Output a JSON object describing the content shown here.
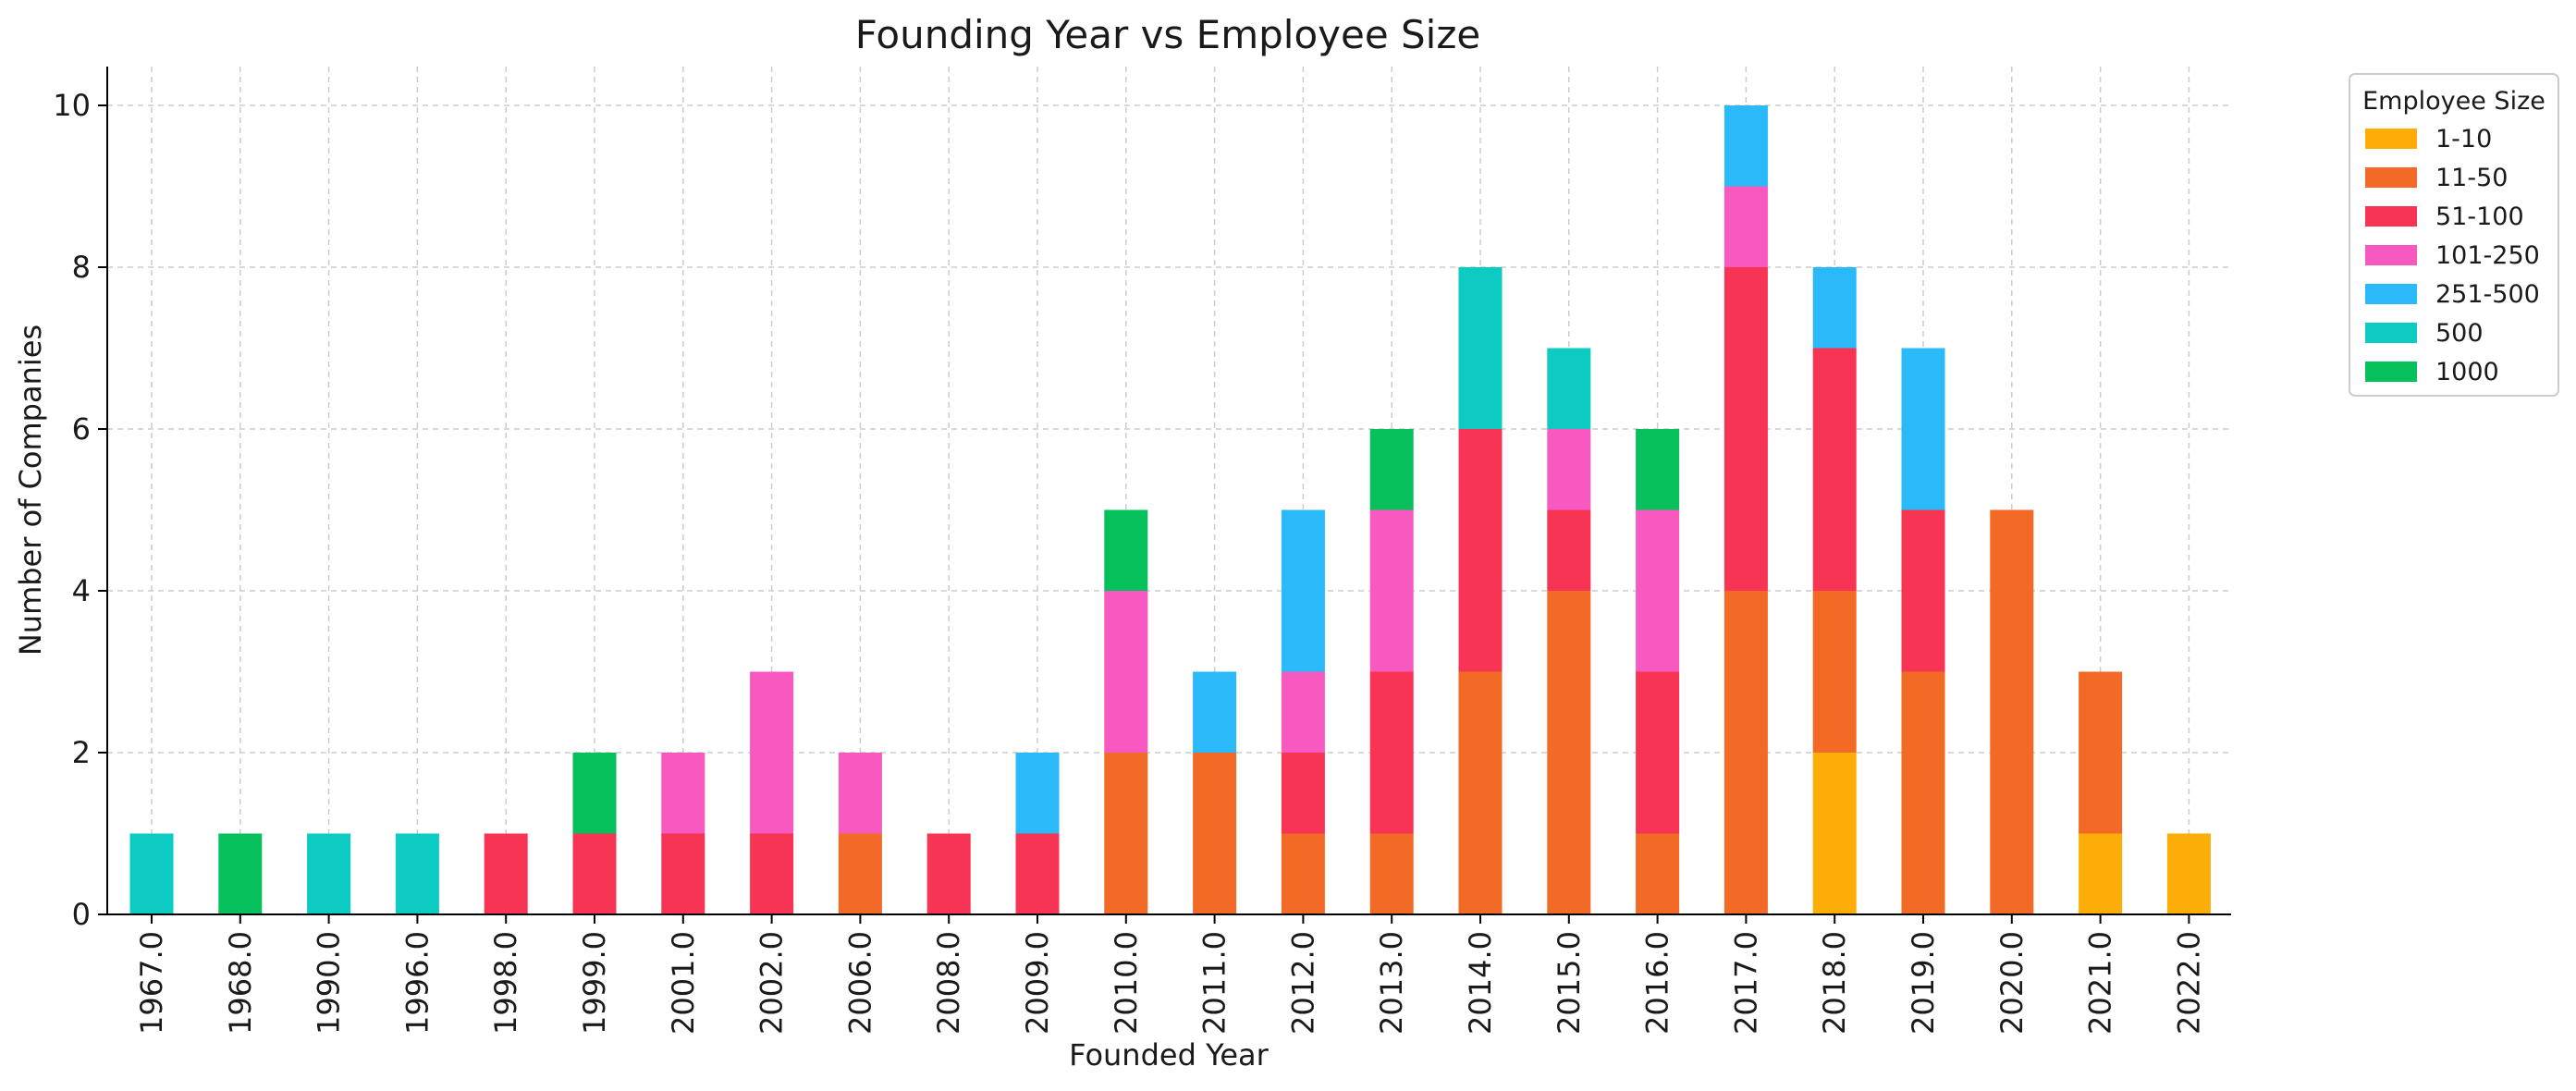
{
  "chart_data": {
    "type": "bar",
    "stacked": true,
    "title": "Founding Year vs Employee Size",
    "xlabel": "Founded Year",
    "ylabel": "Number of Companies",
    "ylim": [
      0,
      10.5
    ],
    "yticks": [
      0,
      2,
      4,
      6,
      8,
      10
    ],
    "grid": true,
    "legend_title": "Employee Size",
    "legend_position": "outside-right",
    "categories": [
      "1967.0",
      "1968.0",
      "1990.0",
      "1996.0",
      "1998.0",
      "1999.0",
      "2001.0",
      "2002.0",
      "2006.0",
      "2008.0",
      "2009.0",
      "2010.0",
      "2011.0",
      "2012.0",
      "2013.0",
      "2014.0",
      "2015.0",
      "2016.0",
      "2017.0",
      "2018.0",
      "2019.0",
      "2020.0",
      "2021.0",
      "2022.0"
    ],
    "series": [
      {
        "name": "1-10",
        "color": "#FDAD07",
        "values": [
          0,
          0,
          0,
          0,
          0,
          0,
          0,
          0,
          0,
          0,
          0,
          0,
          0,
          0,
          0,
          0,
          0,
          0,
          0,
          2,
          0,
          0,
          1,
          1
        ]
      },
      {
        "name": "11-50",
        "color": "#F26A25",
        "values": [
          0,
          0,
          0,
          0,
          0,
          0,
          0,
          0,
          1,
          0,
          0,
          2,
          2,
          1,
          1,
          3,
          4,
          1,
          4,
          2,
          3,
          5,
          2,
          0
        ]
      },
      {
        "name": "51-100",
        "color": "#F73454",
        "values": [
          0,
          0,
          0,
          0,
          1,
          1,
          1,
          1,
          0,
          1,
          1,
          0,
          0,
          1,
          2,
          3,
          1,
          2,
          4,
          3,
          2,
          0,
          0,
          0
        ]
      },
      {
        "name": "101-250",
        "color": "#F759C1",
        "values": [
          0,
          0,
          0,
          0,
          0,
          0,
          1,
          2,
          1,
          0,
          0,
          2,
          0,
          1,
          2,
          0,
          1,
          2,
          1,
          0,
          0,
          0,
          0,
          0
        ]
      },
      {
        "name": "251-500",
        "color": "#2ABAF9",
        "values": [
          0,
          0,
          0,
          0,
          0,
          0,
          0,
          0,
          0,
          0,
          1,
          0,
          1,
          2,
          0,
          0,
          0,
          0,
          1,
          1,
          2,
          0,
          0,
          0
        ]
      },
      {
        "name": "500",
        "color": "#0BCBC3",
        "values": [
          1,
          0,
          1,
          1,
          0,
          0,
          0,
          0,
          0,
          0,
          0,
          0,
          0,
          0,
          0,
          2,
          1,
          0,
          0,
          0,
          0,
          0,
          0,
          0
        ]
      },
      {
        "name": "1000",
        "color": "#06C05B",
        "values": [
          0,
          1,
          0,
          0,
          0,
          1,
          0,
          0,
          0,
          0,
          0,
          1,
          0,
          0,
          1,
          0,
          0,
          1,
          0,
          0,
          0,
          0,
          0,
          0
        ]
      }
    ]
  }
}
